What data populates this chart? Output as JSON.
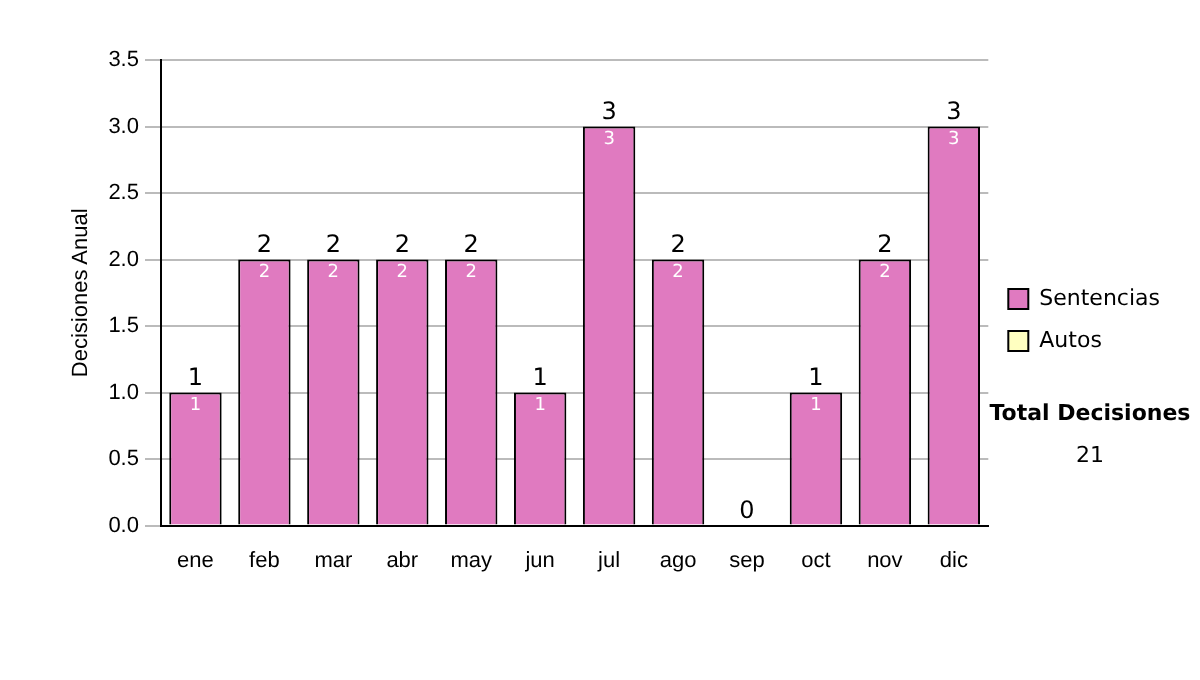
{
  "chart_data": {
    "type": "bar",
    "stacked": true,
    "ylabel": "Decisiones Anual",
    "categories": [
      "ene",
      "feb",
      "mar",
      "abr",
      "may",
      "jun",
      "jul",
      "ago",
      "sep",
      "oct",
      "nov",
      "dic"
    ],
    "series": [
      {
        "name": "Sentencias",
        "color": "#e07ac0",
        "values": [
          1,
          2,
          2,
          2,
          2,
          1,
          3,
          2,
          0,
          1,
          2,
          3
        ],
        "value_labels": [
          "1",
          "2",
          "2",
          "2",
          "2",
          "1",
          "3",
          "2",
          null,
          "1",
          "2",
          "3"
        ]
      },
      {
        "name": "Autos",
        "color": "#ffffc0",
        "values": [
          0,
          0,
          0,
          0,
          0,
          0,
          0,
          0,
          0,
          0,
          0,
          0
        ]
      }
    ],
    "totals": [
      "1",
      "2",
      "2",
      "2",
      "2",
      "1",
      "3",
      "2",
      "0",
      "1",
      "2",
      "3"
    ],
    "ylim": [
      0,
      3.5
    ],
    "yticks": [
      {
        "value": 0,
        "label": "0.0"
      },
      0.5,
      {
        "value": 1,
        "label": "1.0"
      },
      1.5,
      {
        "value": 2,
        "label": "2.0"
      },
      2.5,
      {
        "value": 3,
        "label": "3.0"
      },
      3.5
    ],
    "grid": "y",
    "legend": "right",
    "annotations": [
      "Total Decisiones",
      "21"
    ]
  }
}
